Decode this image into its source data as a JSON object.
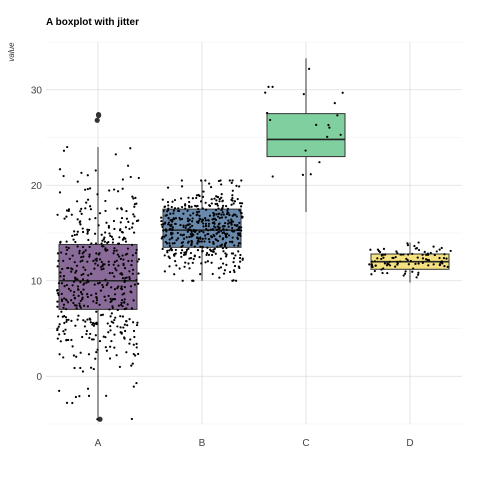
{
  "chart_data": {
    "type": "boxplot",
    "title": "A boxplot with jitter",
    "xlabel": "",
    "ylabel": "value",
    "categories": [
      "A",
      "B",
      "C",
      "D"
    ],
    "ylim": [
      -5,
      35
    ],
    "y_ticks": [
      0,
      10,
      20,
      30
    ],
    "grid": true,
    "legend": "none",
    "boxes": [
      {
        "category": "A",
        "color": "#8a6a98",
        "min": -4.5,
        "q1": 7.0,
        "median": 10.0,
        "q3": 13.8,
        "max": 24.0,
        "outliers": [
          27.3,
          26.8,
          27.4,
          -4.5
        ],
        "n_points": 500,
        "center": 10,
        "spread": 5
      },
      {
        "category": "B",
        "color": "#6a8aad",
        "min": 10.0,
        "q1": 13.5,
        "median": 15.3,
        "q3": 17.5,
        "max": 20.5,
        "outliers": [],
        "n_points": 500,
        "center": 15.3,
        "spread": 2.2
      },
      {
        "category": "C",
        "color": "#7fcf9f",
        "min": 17.2,
        "q1": 23.0,
        "median": 24.8,
        "q3": 27.5,
        "max": 33.3,
        "outliers": [],
        "n_points": 20,
        "center": 25,
        "spread": 4
      },
      {
        "category": "D",
        "color": "#f5e17f",
        "min": 9.8,
        "q1": 11.2,
        "median": 12.0,
        "q3": 12.8,
        "max": 14.0,
        "outliers": [],
        "n_points": 100,
        "center": 12,
        "spread": 0.9
      }
    ]
  }
}
